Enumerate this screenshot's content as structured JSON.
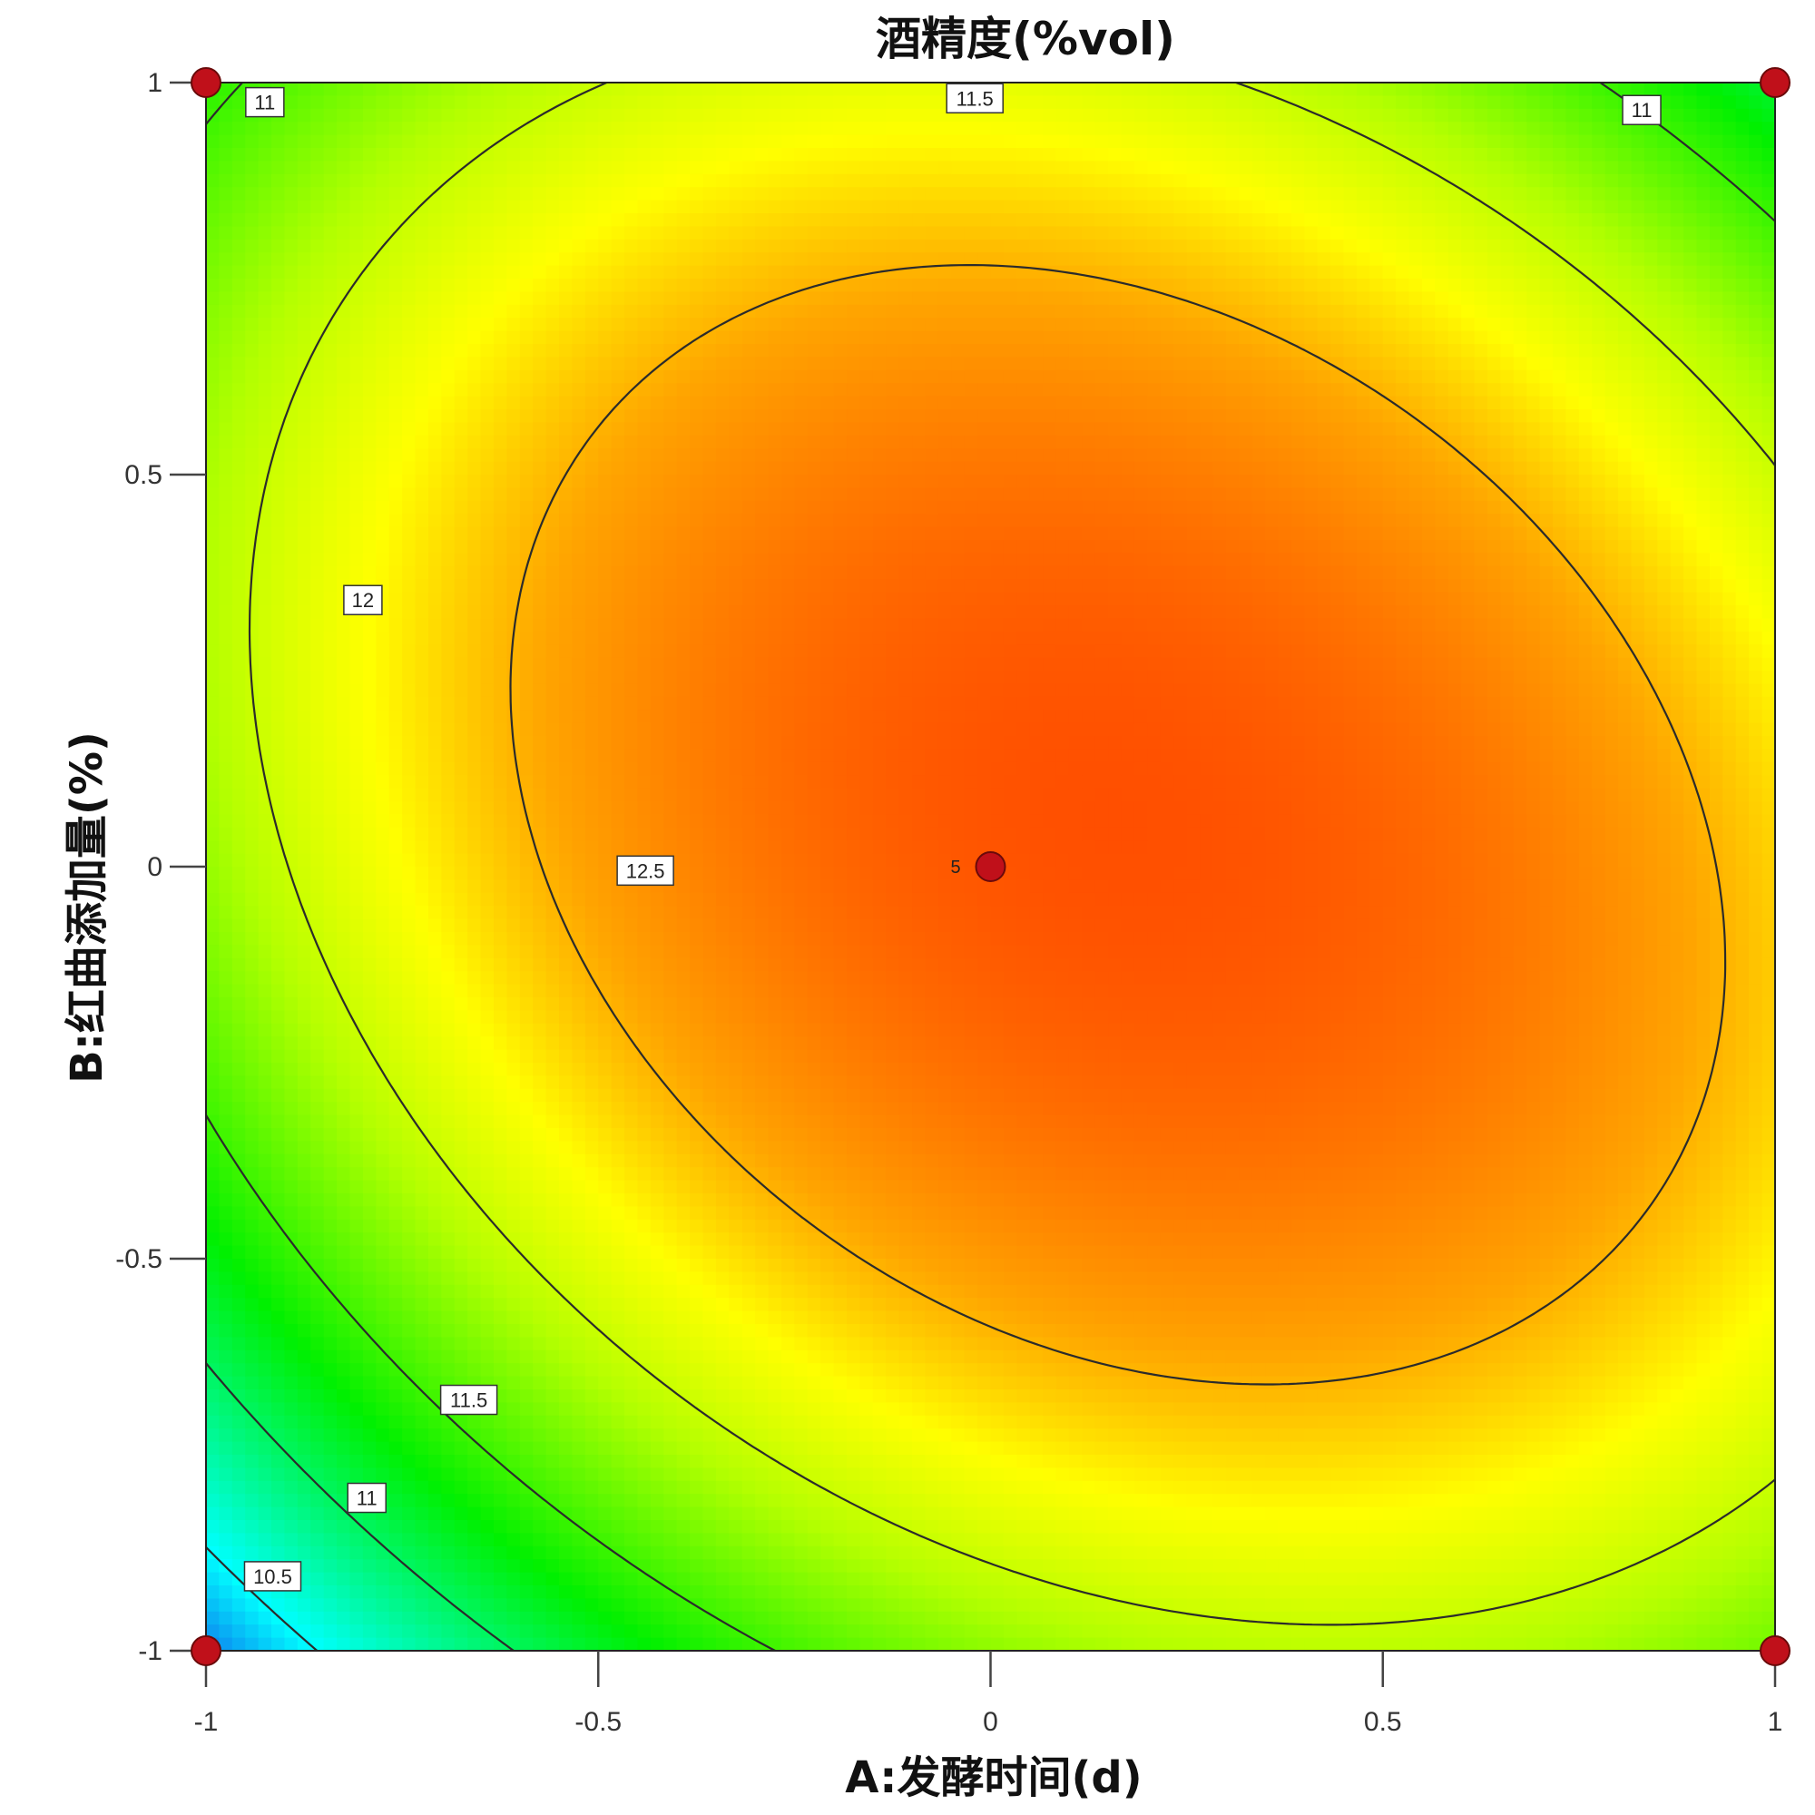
{
  "chart_data": {
    "type": "contour",
    "title": "酒精度(%vol)",
    "xlabel": "A:发酵时间(d)",
    "ylabel": "B:红曲添加量(%)",
    "xlim": [
      -1,
      1
    ],
    "ylim": [
      -1,
      1
    ],
    "x_ticks": [
      "-1",
      "-0.5",
      "0",
      "0.5",
      "1"
    ],
    "y_ticks": [
      "-1",
      "-0.5",
      "0",
      "0.5",
      "1"
    ],
    "grid": false,
    "color_scale": [
      "#1a4fe6",
      "#00ffff",
      "#00ff00",
      "#b8ff00",
      "#ffff00",
      "#ffa500",
      "#ff3300"
    ],
    "contour_levels": [
      10.5,
      11,
      11.5,
      12,
      12.5
    ],
    "contour_labels": [
      {
        "text": "11",
        "x": -0.925,
        "y": 0.975
      },
      {
        "text": "11.5",
        "x": -0.02,
        "y": 0.98
      },
      {
        "text": "11",
        "x": 0.83,
        "y": 0.965
      },
      {
        "text": "12",
        "x": -0.8,
        "y": 0.34
      },
      {
        "text": "12.5",
        "x": -0.44,
        "y": -0.005
      },
      {
        "text": "11.5",
        "x": -0.665,
        "y": -0.68
      },
      {
        "text": "11",
        "x": -0.795,
        "y": -0.805
      },
      {
        "text": "10.5",
        "x": -0.915,
        "y": -0.905
      }
    ],
    "design_points": [
      {
        "x": -1,
        "y": 1,
        "label": ""
      },
      {
        "x": 1,
        "y": 1,
        "label": ""
      },
      {
        "x": -1,
        "y": -1,
        "label": ""
      },
      {
        "x": 1,
        "y": -1,
        "label": ""
      },
      {
        "x": 0,
        "y": 0,
        "label": "5"
      }
    ]
  }
}
